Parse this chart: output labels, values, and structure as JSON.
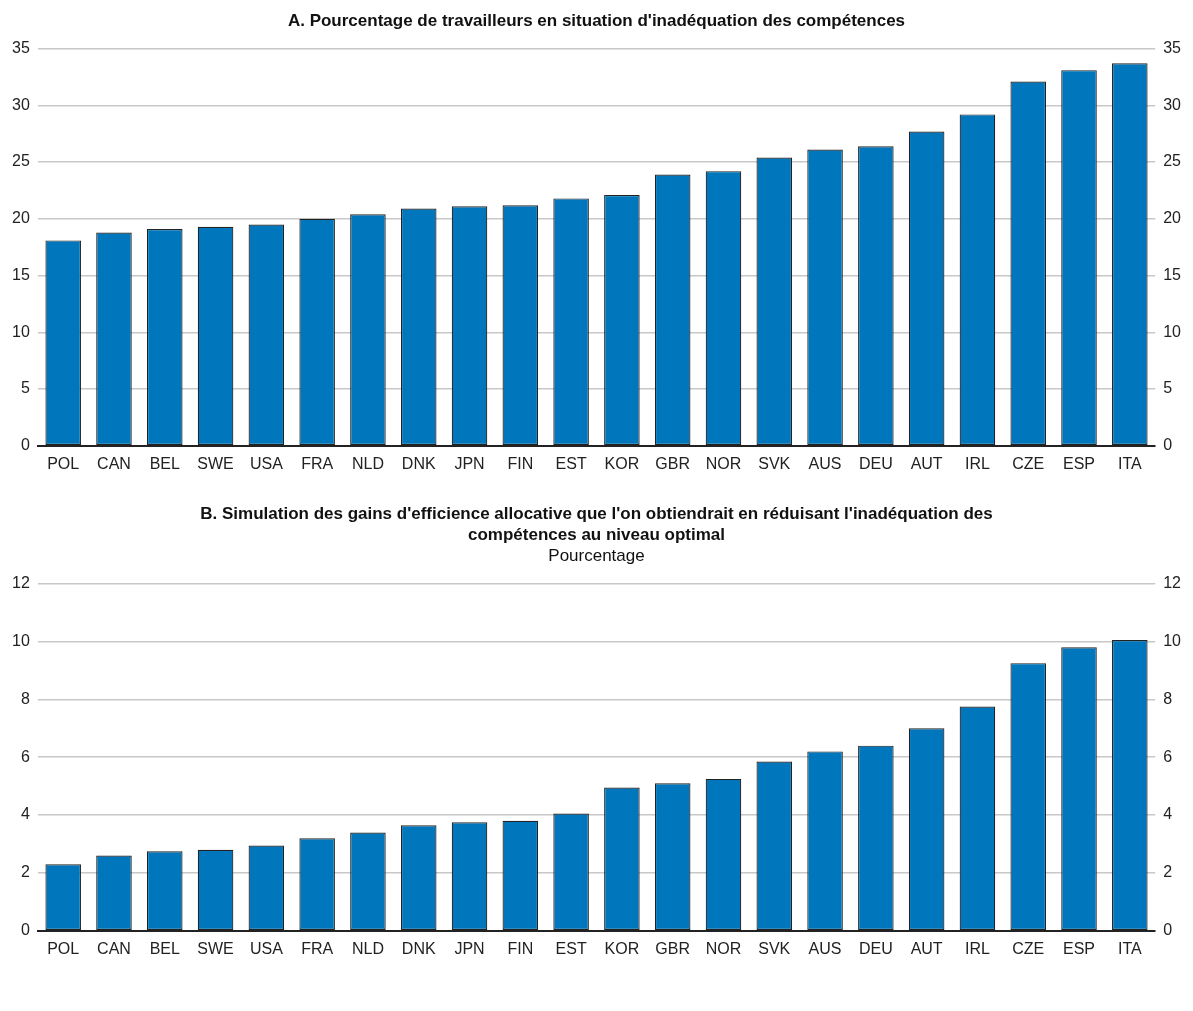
{
  "chart_data": [
    {
      "type": "bar",
      "title": "A. Pourcentage de travailleurs en situation d'inadéquation des compétences",
      "categories": [
        "POL",
        "CAN",
        "BEL",
        "SWE",
        "USA",
        "FRA",
        "NLD",
        "DNK",
        "JPN",
        "FIN",
        "EST",
        "KOR",
        "GBR",
        "NOR",
        "SVK",
        "AUS",
        "DEU",
        "AUT",
        "IRL",
        "CZE",
        "ESP",
        "ITA"
      ],
      "values": [
        18.1,
        18.8,
        19.1,
        19.3,
        19.5,
        20.0,
        20.4,
        20.9,
        21.1,
        21.2,
        21.8,
        22.1,
        23.9,
        24.2,
        25.4,
        26.1,
        26.4,
        27.7,
        29.2,
        32.1,
        33.1,
        33.7
      ],
      "color": "#0077bd",
      "ylim": [
        0,
        35
      ],
      "yticks": [
        0,
        5,
        10,
        15,
        20,
        25,
        30,
        35
      ],
      "y2lim": [
        0,
        35
      ],
      "y2ticks": [
        0,
        5,
        10,
        15,
        20,
        25,
        30,
        35
      ],
      "grid": "y",
      "legend": false
    },
    {
      "type": "bar",
      "title": "B. Simulation des gains d'efficience allocative que l'on obtiendrait en réduisant l'inadéquation des compétences au niveau optimal",
      "subtitle": "Pourcentage",
      "categories": [
        "POL",
        "CAN",
        "BEL",
        "SWE",
        "USA",
        "FRA",
        "NLD",
        "DNK",
        "JPN",
        "FIN",
        "EST",
        "KOR",
        "GBR",
        "NOR",
        "SVK",
        "AUS",
        "DEU",
        "AUT",
        "IRL",
        "CZE",
        "ESP",
        "ITA"
      ],
      "values": [
        2.3,
        2.6,
        2.75,
        2.8,
        2.95,
        3.2,
        3.4,
        3.65,
        3.75,
        3.8,
        4.05,
        4.95,
        5.1,
        5.25,
        5.85,
        6.2,
        6.4,
        7.0,
        7.75,
        9.25,
        9.8,
        10.05
      ],
      "color": "#0077bd",
      "ylim": [
        0,
        12
      ],
      "yticks": [
        0,
        2,
        4,
        6,
        8,
        10,
        12
      ],
      "y2lim": [
        0,
        12
      ],
      "y2ticks": [
        0,
        2,
        4,
        6,
        8,
        10,
        12
      ],
      "grid": "y",
      "legend": false
    }
  ]
}
